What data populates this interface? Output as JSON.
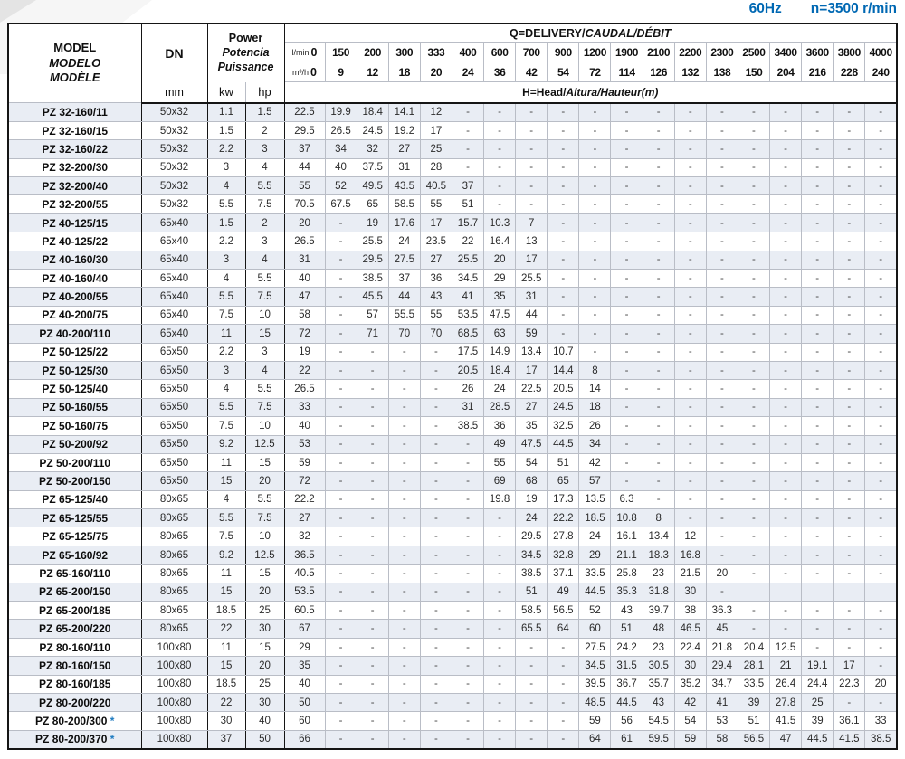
{
  "title": {
    "frequency": "60Hz",
    "speed": "n=3500 r/min"
  },
  "colors": {
    "accent_blue": "#0068b3",
    "row_stripe": "#e9edf4",
    "star_blue": "#1e7bc0"
  },
  "table": {
    "header": {
      "model_label": "MODEL",
      "model_label_es": "MODELO",
      "model_label_fr": "MODÈLE",
      "dn_label": "DN",
      "dn_unit": "mm",
      "power_label": "Power",
      "power_label_es": "Potencia",
      "power_label_fr": "Puissance",
      "kw_label": "kw",
      "hp_label": "hp",
      "q_title_en": "Q=DELIVERY/",
      "q_title_intl": "CAUDAL/DÉBIT",
      "lmin_label": "l/min",
      "m3h_label": "m³/h",
      "lmin_zero": "0",
      "m3h_zero": "0",
      "lmin_values": [
        "150",
        "200",
        "300",
        "333",
        "400",
        "600",
        "700",
        "900",
        "1200",
        "1900",
        "2100",
        "2200",
        "2300",
        "2500",
        "3400",
        "3600",
        "3800",
        "4000"
      ],
      "m3h_values": [
        "9",
        "12",
        "18",
        "20",
        "24",
        "36",
        "42",
        "54",
        "72",
        "114",
        "126",
        "132",
        "138",
        "150",
        "204",
        "216",
        "228",
        "240"
      ],
      "head_title_en": "H=Head/",
      "head_title_intl": "Altura/Hauteur(m)"
    },
    "rows": [
      {
        "model": "PZ 32-160/11",
        "star": "",
        "dn": "50x32",
        "kw": "1.1",
        "hp": "1.5",
        "heads": [
          "22.5",
          "19.9",
          "18.4",
          "14.1",
          "12",
          "-",
          "-",
          "-",
          "-",
          "-",
          "-",
          "-",
          "-",
          "-",
          "-",
          "-",
          "-",
          "-",
          "-"
        ]
      },
      {
        "model": "PZ 32-160/15",
        "star": "",
        "dn": "50x32",
        "kw": "1.5",
        "hp": "2",
        "heads": [
          "29.5",
          "26.5",
          "24.5",
          "19.2",
          "17",
          "-",
          "-",
          "-",
          "-",
          "-",
          "-",
          "-",
          "-",
          "-",
          "-",
          "-",
          "-",
          "-",
          "-"
        ]
      },
      {
        "model": "PZ 32-160/22",
        "star": "",
        "dn": "50x32",
        "kw": "2.2",
        "hp": "3",
        "heads": [
          "37",
          "34",
          "32",
          "27",
          "25",
          "-",
          "-",
          "-",
          "-",
          "-",
          "-",
          "-",
          "-",
          "-",
          "-",
          "-",
          "-",
          "-",
          "-"
        ]
      },
      {
        "model": "PZ 32-200/30",
        "star": "",
        "dn": "50x32",
        "kw": "3",
        "hp": "4",
        "heads": [
          "44",
          "40",
          "37.5",
          "31",
          "28",
          "-",
          "-",
          "-",
          "-",
          "-",
          "-",
          "-",
          "-",
          "-",
          "-",
          "-",
          "-",
          "-",
          "-"
        ]
      },
      {
        "model": "PZ 32-200/40",
        "star": "",
        "dn": "50x32",
        "kw": "4",
        "hp": "5.5",
        "heads": [
          "55",
          "52",
          "49.5",
          "43.5",
          "40.5",
          "37",
          "-",
          "-",
          "-",
          "-",
          "-",
          "-",
          "-",
          "-",
          "-",
          "-",
          "-",
          "-",
          "-"
        ]
      },
      {
        "model": "PZ 32-200/55",
        "star": "",
        "dn": "50x32",
        "kw": "5.5",
        "hp": "7.5",
        "heads": [
          "70.5",
          "67.5",
          "65",
          "58.5",
          "55",
          "51",
          "-",
          "-",
          "-",
          "-",
          "-",
          "-",
          "-",
          "-",
          "-",
          "-",
          "-",
          "-",
          "-"
        ]
      },
      {
        "model": "PZ 40-125/15",
        "star": "",
        "dn": "65x40",
        "kw": "1.5",
        "hp": "2",
        "heads": [
          "20",
          "-",
          "19",
          "17.6",
          "17",
          "15.7",
          "10.3",
          "7",
          "-",
          "-",
          "-",
          "-",
          "-",
          "-",
          "-",
          "-",
          "-",
          "-",
          "-"
        ]
      },
      {
        "model": "PZ 40-125/22",
        "star": "",
        "dn": "65x40",
        "kw": "2.2",
        "hp": "3",
        "heads": [
          "26.5",
          "-",
          "25.5",
          "24",
          "23.5",
          "22",
          "16.4",
          "13",
          "-",
          "-",
          "-",
          "-",
          "-",
          "-",
          "-",
          "-",
          "-",
          "-",
          "-"
        ]
      },
      {
        "model": "PZ 40-160/30",
        "star": "",
        "dn": "65x40",
        "kw": "3",
        "hp": "4",
        "heads": [
          "31",
          "-",
          "29.5",
          "27.5",
          "27",
          "25.5",
          "20",
          "17",
          "-",
          "-",
          "-",
          "-",
          "-",
          "-",
          "-",
          "-",
          "-",
          "-",
          "-"
        ]
      },
      {
        "model": "PZ 40-160/40",
        "star": "",
        "dn": "65x40",
        "kw": "4",
        "hp": "5.5",
        "heads": [
          "40",
          "-",
          "38.5",
          "37",
          "36",
          "34.5",
          "29",
          "25.5",
          "-",
          "-",
          "-",
          "-",
          "-",
          "-",
          "-",
          "-",
          "-",
          "-",
          "-"
        ]
      },
      {
        "model": "PZ 40-200/55",
        "star": "",
        "dn": "65x40",
        "kw": "5.5",
        "hp": "7.5",
        "heads": [
          "47",
          "-",
          "45.5",
          "44",
          "43",
          "41",
          "35",
          "31",
          "-",
          "-",
          "-",
          "-",
          "-",
          "-",
          "-",
          "-",
          "-",
          "-",
          "-"
        ]
      },
      {
        "model": "PZ 40-200/75",
        "star": "",
        "dn": "65x40",
        "kw": "7.5",
        "hp": "10",
        "heads": [
          "58",
          "-",
          "57",
          "55.5",
          "55",
          "53.5",
          "47.5",
          "44",
          "-",
          "-",
          "-",
          "-",
          "-",
          "-",
          "-",
          "-",
          "-",
          "-",
          "-"
        ]
      },
      {
        "model": "PZ 40-200/110",
        "star": "",
        "dn": "65x40",
        "kw": "11",
        "hp": "15",
        "heads": [
          "72",
          "-",
          "71",
          "70",
          "70",
          "68.5",
          "63",
          "59",
          "-",
          "-",
          "-",
          "-",
          "-",
          "-",
          "-",
          "-",
          "-",
          "-",
          "-"
        ]
      },
      {
        "model": "PZ 50-125/22",
        "star": "",
        "dn": "65x50",
        "kw": "2.2",
        "hp": "3",
        "heads": [
          "19",
          "-",
          "-",
          "-",
          "-",
          "17.5",
          "14.9",
          "13.4",
          "10.7",
          "-",
          "-",
          "-",
          "-",
          "-",
          "-",
          "-",
          "-",
          "-",
          "-"
        ]
      },
      {
        "model": "PZ 50-125/30",
        "star": "",
        "dn": "65x50",
        "kw": "3",
        "hp": "4",
        "heads": [
          "22",
          "-",
          "-",
          "-",
          "-",
          "20.5",
          "18.4",
          "17",
          "14.4",
          "8",
          "-",
          "-",
          "-",
          "-",
          "-",
          "-",
          "-",
          "-",
          "-"
        ]
      },
      {
        "model": "PZ 50-125/40",
        "star": "",
        "dn": "65x50",
        "kw": "4",
        "hp": "5.5",
        "heads": [
          "26.5",
          "-",
          "-",
          "-",
          "-",
          "26",
          "24",
          "22.5",
          "20.5",
          "14",
          "-",
          "-",
          "-",
          "-",
          "-",
          "-",
          "-",
          "-",
          "-"
        ]
      },
      {
        "model": "PZ 50-160/55",
        "star": "",
        "dn": "65x50",
        "kw": "5.5",
        "hp": "7.5",
        "heads": [
          "33",
          "-",
          "-",
          "-",
          "-",
          "31",
          "28.5",
          "27",
          "24.5",
          "18",
          "-",
          "-",
          "-",
          "-",
          "-",
          "-",
          "-",
          "-",
          "-"
        ]
      },
      {
        "model": "PZ 50-160/75",
        "star": "",
        "dn": "65x50",
        "kw": "7.5",
        "hp": "10",
        "heads": [
          "40",
          "-",
          "-",
          "-",
          "-",
          "38.5",
          "36",
          "35",
          "32.5",
          "26",
          "-",
          "-",
          "-",
          "-",
          "-",
          "-",
          "-",
          "-",
          "-"
        ]
      },
      {
        "model": "PZ 50-200/92",
        "star": "",
        "dn": "65x50",
        "kw": "9.2",
        "hp": "12.5",
        "heads": [
          "53",
          "-",
          "-",
          "-",
          "-",
          "-",
          "49",
          "47.5",
          "44.5",
          "34",
          "-",
          "-",
          "-",
          "-",
          "-",
          "-",
          "-",
          "-",
          "-"
        ]
      },
      {
        "model": "PZ 50-200/110",
        "star": "",
        "dn": "65x50",
        "kw": "11",
        "hp": "15",
        "heads": [
          "59",
          "-",
          "-",
          "-",
          "-",
          "-",
          "55",
          "54",
          "51",
          "42",
          "-",
          "-",
          "-",
          "-",
          "-",
          "-",
          "-",
          "-",
          "-"
        ]
      },
      {
        "model": "PZ 50-200/150",
        "star": "",
        "dn": "65x50",
        "kw": "15",
        "hp": "20",
        "heads": [
          "72",
          "-",
          "-",
          "-",
          "-",
          "-",
          "69",
          "68",
          "65",
          "57",
          "-",
          "-",
          "-",
          "-",
          "-",
          "-",
          "-",
          "-",
          "-"
        ]
      },
      {
        "model": "PZ 65-125/40",
        "star": "",
        "dn": "80x65",
        "kw": "4",
        "hp": "5.5",
        "heads": [
          "22.2",
          "-",
          "-",
          "-",
          "-",
          "-",
          "19.8",
          "19",
          "17.3",
          "13.5",
          "6.3",
          "-",
          "-",
          "-",
          "-",
          "-",
          "-",
          "-",
          "-"
        ]
      },
      {
        "model": "PZ 65-125/55",
        "star": "",
        "dn": "80x65",
        "kw": "5.5",
        "hp": "7.5",
        "heads": [
          "27",
          "-",
          "-",
          "-",
          "-",
          "-",
          "-",
          "24",
          "22.2",
          "18.5",
          "10.8",
          "8",
          "-",
          "-",
          "-",
          "-",
          "-",
          "-",
          "-"
        ]
      },
      {
        "model": "PZ 65-125/75",
        "star": "",
        "dn": "80x65",
        "kw": "7.5",
        "hp": "10",
        "heads": [
          "32",
          "-",
          "-",
          "-",
          "-",
          "-",
          "-",
          "29.5",
          "27.8",
          "24",
          "16.1",
          "13.4",
          "12",
          "-",
          "-",
          "-",
          "-",
          "-",
          "-"
        ]
      },
      {
        "model": "PZ 65-160/92",
        "star": "",
        "dn": "80x65",
        "kw": "9.2",
        "hp": "12.5",
        "heads": [
          "36.5",
          "-",
          "-",
          "-",
          "-",
          "-",
          "-",
          "34.5",
          "32.8",
          "29",
          "21.1",
          "18.3",
          "16.8",
          "-",
          "-",
          "-",
          "-",
          "-",
          "-"
        ]
      },
      {
        "model": "PZ 65-160/110",
        "star": "",
        "dn": "80x65",
        "kw": "11",
        "hp": "15",
        "heads": [
          "40.5",
          "-",
          "-",
          "-",
          "-",
          "-",
          "-",
          "38.5",
          "37.1",
          "33.5",
          "25.8",
          "23",
          "21.5",
          "20",
          "-",
          "-",
          "-",
          "-",
          "-"
        ]
      },
      {
        "model": "PZ 65-200/150",
        "star": "",
        "dn": "80x65",
        "kw": "15",
        "hp": "20",
        "heads": [
          "53.5",
          "-",
          "-",
          "-",
          "-",
          "-",
          "-",
          "51",
          "49",
          "44.5",
          "35.3",
          "31.8",
          "30",
          "-",
          "",
          "",
          "",
          "",
          ""
        ]
      },
      {
        "model": "PZ 65-200/185",
        "star": "",
        "dn": "80x65",
        "kw": "18.5",
        "hp": "25",
        "heads": [
          "60.5",
          "-",
          "-",
          "-",
          "-",
          "-",
          "-",
          "58.5",
          "56.5",
          "52",
          "43",
          "39.7",
          "38",
          "36.3",
          "-",
          "-",
          "-",
          "-",
          "-"
        ]
      },
      {
        "model": "PZ 65-200/220",
        "star": "",
        "dn": "80x65",
        "kw": "22",
        "hp": "30",
        "heads": [
          "67",
          "-",
          "-",
          "-",
          "-",
          "-",
          "-",
          "65.5",
          "64",
          "60",
          "51",
          "48",
          "46.5",
          "45",
          "-",
          "-",
          "-",
          "-",
          "-"
        ]
      },
      {
        "model": "PZ 80-160/110",
        "star": "",
        "dn": "100x80",
        "kw": "11",
        "hp": "15",
        "heads": [
          "29",
          "-",
          "-",
          "-",
          "-",
          "-",
          "-",
          "-",
          "-",
          "27.5",
          "24.2",
          "23",
          "22.4",
          "21.8",
          "20.4",
          "12.5",
          "-",
          "-",
          "-"
        ]
      },
      {
        "model": "PZ 80-160/150",
        "star": "",
        "dn": "100x80",
        "kw": "15",
        "hp": "20",
        "heads": [
          "35",
          "-",
          "-",
          "-",
          "-",
          "-",
          "-",
          "-",
          "-",
          "34.5",
          "31.5",
          "30.5",
          "30",
          "29.4",
          "28.1",
          "21",
          "19.1",
          "17",
          "-"
        ]
      },
      {
        "model": "PZ 80-160/185",
        "star": "",
        "dn": "100x80",
        "kw": "18.5",
        "hp": "25",
        "heads": [
          "40",
          "-",
          "-",
          "-",
          "-",
          "-",
          "-",
          "-",
          "-",
          "39.5",
          "36.7",
          "35.7",
          "35.2",
          "34.7",
          "33.5",
          "26.4",
          "24.4",
          "22.3",
          "20"
        ]
      },
      {
        "model": "PZ 80-200/220",
        "star": "",
        "dn": "100x80",
        "kw": "22",
        "hp": "30",
        "heads": [
          "50",
          "-",
          "-",
          "-",
          "-",
          "-",
          "-",
          "-",
          "-",
          "48.5",
          "44.5",
          "43",
          "42",
          "41",
          "39",
          "27.8",
          "25",
          "-",
          "-"
        ]
      },
      {
        "model": "PZ 80-200/300",
        "star": "*",
        "dn": "100x80",
        "kw": "30",
        "hp": "40",
        "heads": [
          "60",
          "-",
          "-",
          "-",
          "-",
          "-",
          "-",
          "-",
          "-",
          "59",
          "56",
          "54.5",
          "54",
          "53",
          "51",
          "41.5",
          "39",
          "36.1",
          "33"
        ]
      },
      {
        "model": "PZ 80-200/370",
        "star": "*",
        "dn": "100x80",
        "kw": "37",
        "hp": "50",
        "heads": [
          "66",
          "-",
          "-",
          "-",
          "-",
          "-",
          "-",
          "-",
          "-",
          "64",
          "61",
          "59.5",
          "59",
          "58",
          "56.5",
          "47",
          "44.5",
          "41.5",
          "38.5"
        ]
      }
    ]
  }
}
